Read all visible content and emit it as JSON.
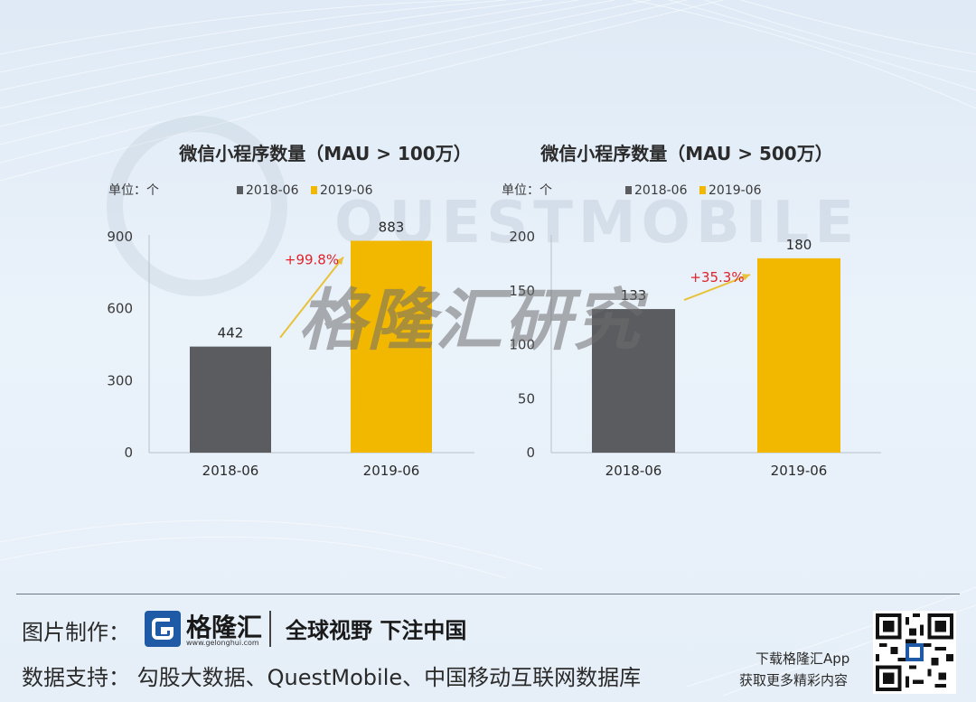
{
  "chart_data": [
    {
      "type": "bar",
      "title": "微信小程序数量（MAU > 100万）",
      "unit": "单位：个",
      "categories": [
        "2018-06",
        "2019-06"
      ],
      "series": [
        {
          "name": "2018-06",
          "color": "#5a5c60",
          "values": [
            442,
            null
          ]
        },
        {
          "name": "2019-06",
          "color": "#f2b800",
          "values": [
            null,
            883
          ]
        }
      ],
      "values": [
        442,
        883
      ],
      "yticks": [
        "0",
        "300",
        "600",
        "900"
      ],
      "ylim": [
        0,
        900
      ],
      "growth": "+99.8%",
      "grid": false,
      "legend": "top"
    },
    {
      "type": "bar",
      "title": "微信小程序数量（MAU > 500万）",
      "unit": "单位：个",
      "categories": [
        "2018-06",
        "2019-06"
      ],
      "series": [
        {
          "name": "2018-06",
          "color": "#5a5c60",
          "values": [
            133,
            null
          ]
        },
        {
          "name": "2019-06",
          "color": "#f2b800",
          "values": [
            null,
            180
          ]
        }
      ],
      "values": [
        133,
        180
      ],
      "yticks": [
        "0",
        "50",
        "100",
        "150",
        "200"
      ],
      "ylim": [
        0,
        200
      ],
      "growth": "+35.3%",
      "grid": false,
      "legend": "top"
    }
  ],
  "watermarks": {
    "questmobile": "QUESTMOBILE",
    "gelonghui_research": "格隆汇研究"
  },
  "footer": {
    "made_by": "图片制作：",
    "brand_name": "格隆汇",
    "brand_url": "www.gelonghui.com",
    "slogan": "全球视野 下注中国",
    "source": "数据支持： 勾股大数据、QuestMobile、中国移动互联网数据库",
    "app_line1": "下载格隆汇App",
    "app_line2": "获取更多精彩内容"
  },
  "colors": {
    "bar_2018": "#5a5c60",
    "bar_2019": "#f2b800",
    "growth": "#e0222a",
    "brand_blue": "#1f5aa6"
  },
  "icons": {
    "logo": "gelonghui-logo-icon",
    "qr": "qr-code-icon"
  }
}
